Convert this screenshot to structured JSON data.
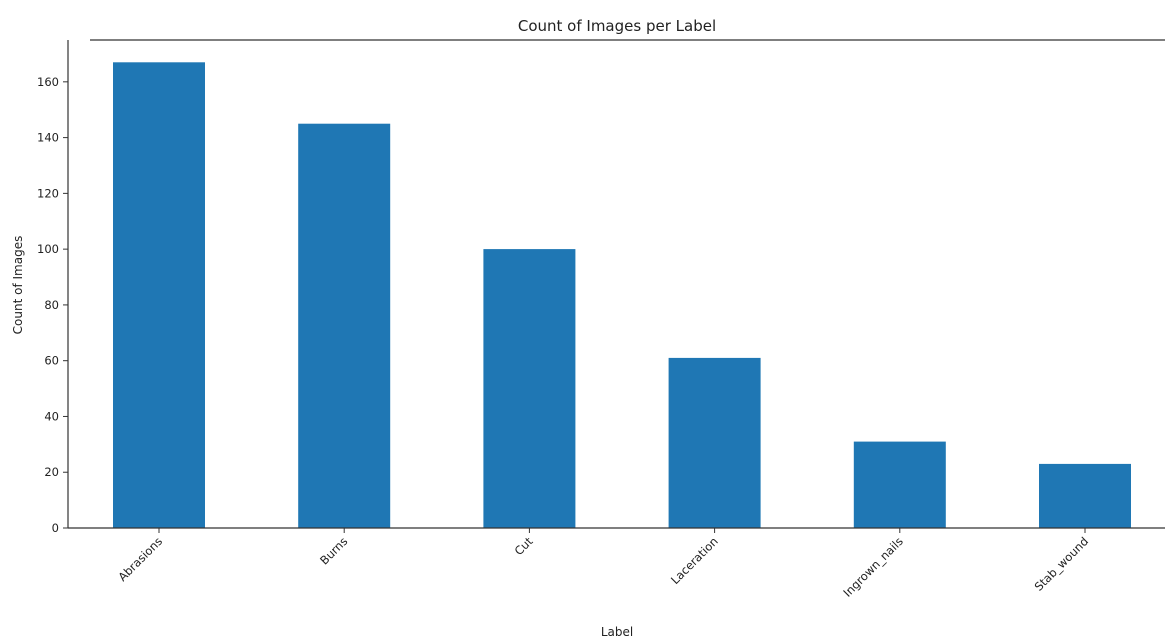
{
  "chart_data": {
    "type": "bar",
    "title": "Count of Images per Label",
    "xlabel": "Label",
    "ylabel": "Count of Images",
    "categories": [
      "Abrasions",
      "Burns",
      "Cut",
      "Laceration",
      "Ingrown_nails",
      "Stab_wound"
    ],
    "values": [
      167,
      145,
      100,
      61,
      31,
      23
    ],
    "ylim": [
      0,
      175
    ],
    "yticks": [
      0,
      20,
      40,
      60,
      80,
      100,
      120,
      140,
      160
    ],
    "grid": false,
    "legend": "none",
    "bar_color": "#1f77b4"
  }
}
